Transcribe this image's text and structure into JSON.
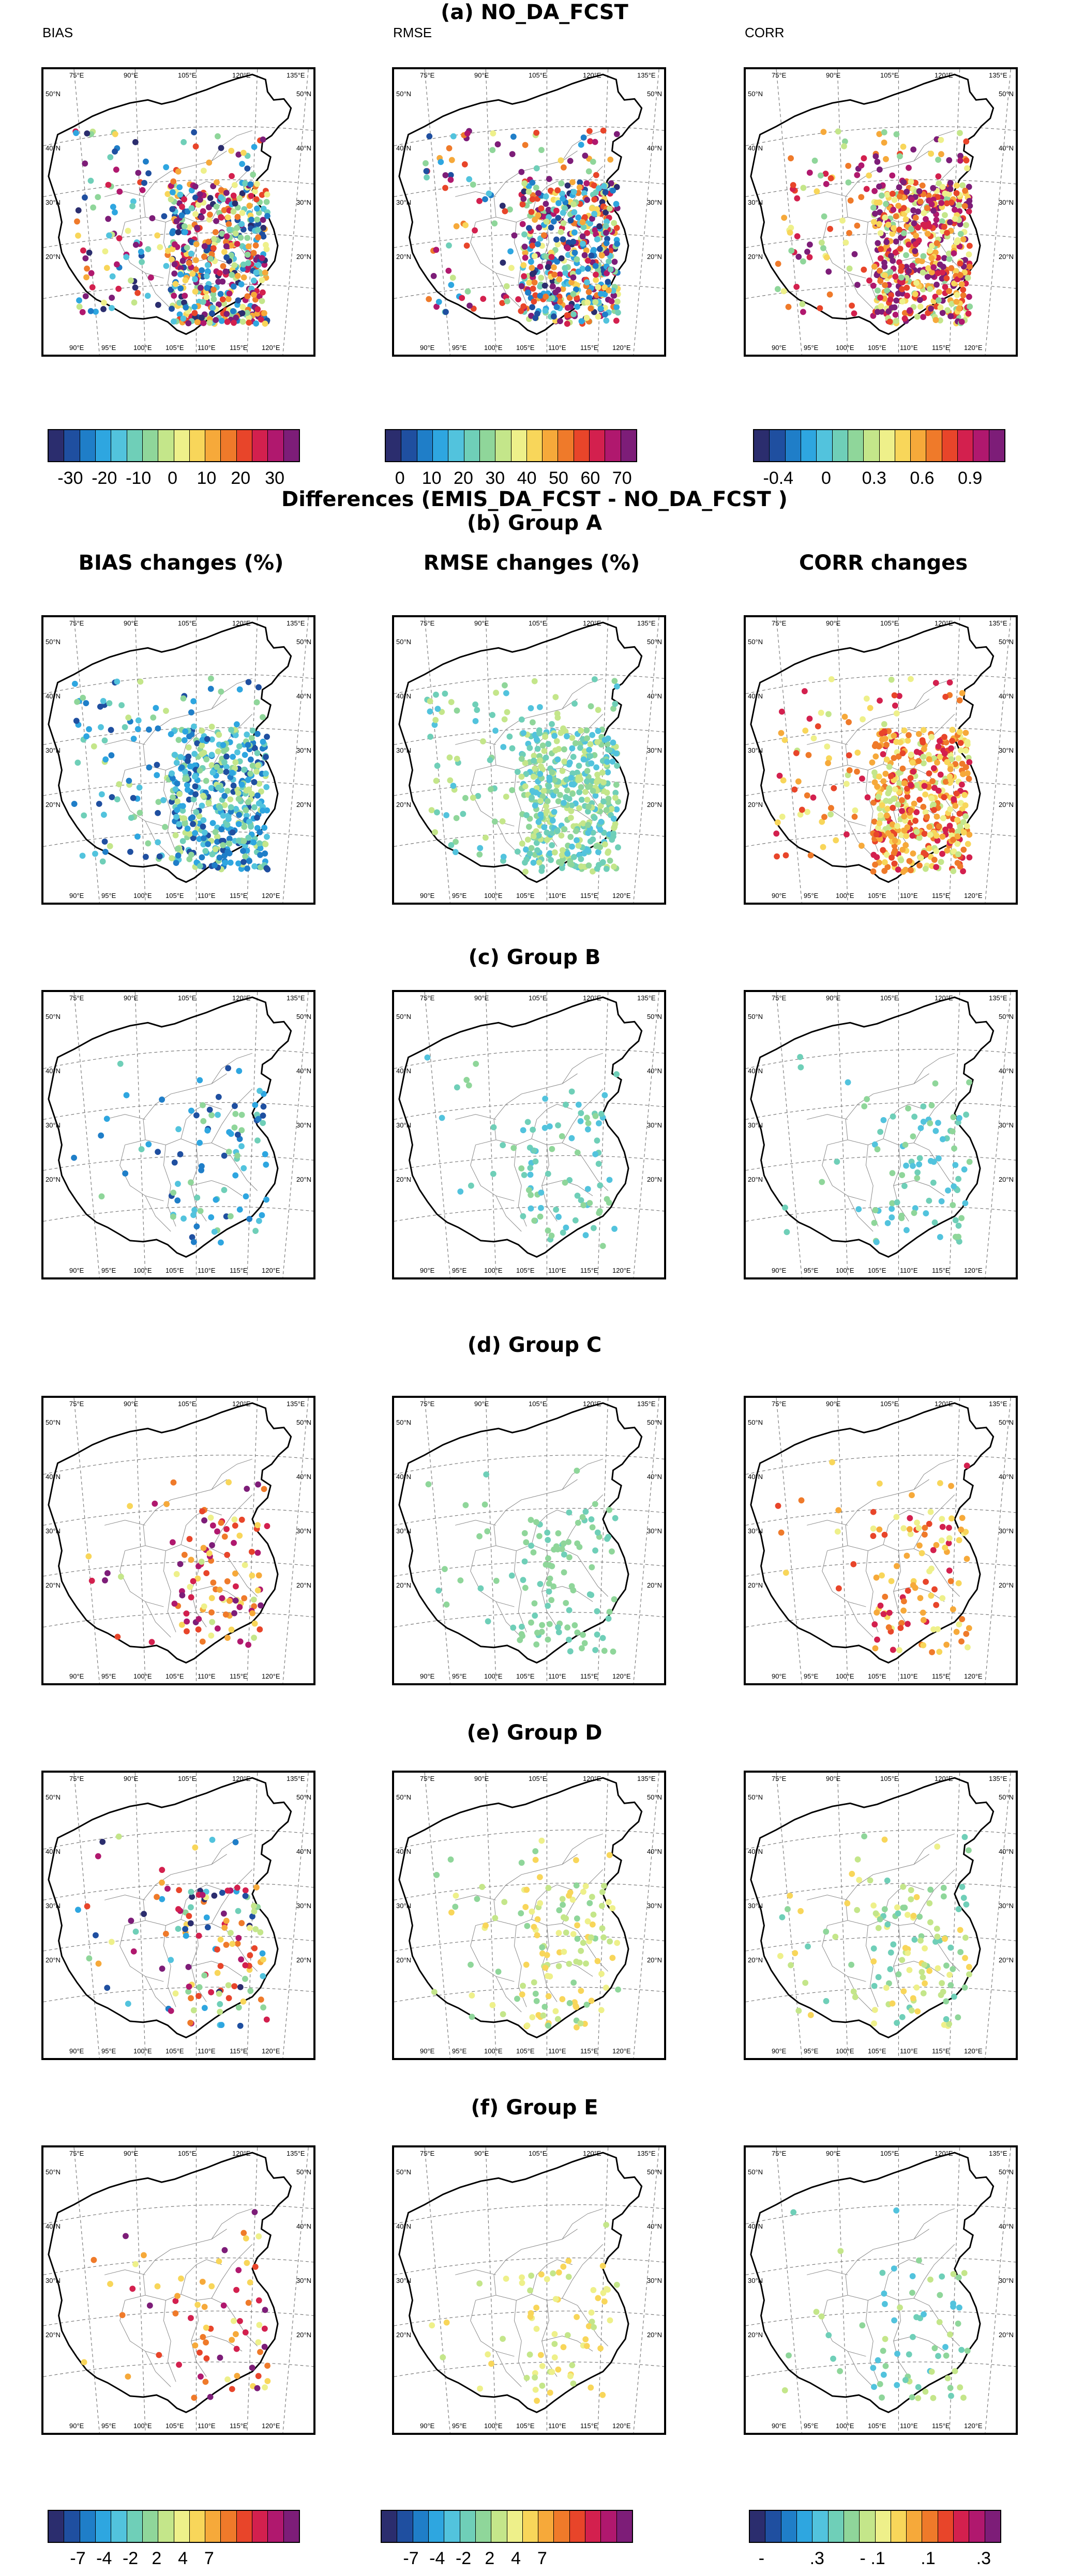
{
  "titles": {
    "section_a": "(a) NO_DA_FCST",
    "differences": "Differences (EMIS_DA_FCST - NO_DA_FCST )",
    "section_b": "(b)  Group A",
    "section_c": "(c) Group B",
    "section_d": "(d) Group C",
    "section_e": "(e) Group D",
    "section_f": "(f) Group E"
  },
  "panel_labels": {
    "bias": "BIAS",
    "rmse": "RMSE",
    "corr": "CORR"
  },
  "column_titles": {
    "bias": "BIAS changes (%)",
    "rmse": "RMSE changes (%)",
    "corr": "CORR changes"
  },
  "map_labels": {
    "lat": [
      "50°N",
      "40°N",
      "30°N",
      "20°N"
    ],
    "lon_top": [
      "75°E",
      "90°E",
      "105°E",
      "120°E",
      "135°E"
    ],
    "lon_bottom": [
      "90°E",
      "95°E",
      "100°E",
      "105°E",
      "110°E",
      "115°E",
      "120°E"
    ]
  },
  "colorbars": {
    "top_bias_ticks": [
      "-30",
      "-20",
      "-10",
      "0",
      "10",
      "20",
      "30"
    ],
    "top_rmse_ticks": [
      "0",
      "10",
      "20",
      "30",
      "40",
      "50",
      "60",
      "70"
    ],
    "top_corr_ticks": [
      "-0.4",
      "0",
      "0.3",
      "0.6",
      "0.9"
    ],
    "bottom_bias_ticks": [
      "-7",
      "-4",
      "-2",
      "2",
      "4",
      "7"
    ],
    "bottom_rmse_ticks": [
      "-7",
      "-4",
      "-2",
      "2",
      "4",
      "7"
    ],
    "bottom_corr_ticks": [
      "-",
      ".3",
      "- .1",
      ".1",
      ".3"
    ]
  },
  "palette": [
    "#2b2d6e",
    "#1f4fa0",
    "#1f7ec8",
    "#2ea6e0",
    "#52c3dd",
    "#6fcfb8",
    "#8fd69a",
    "#c4e68a",
    "#eef08a",
    "#f8d65a",
    "#f6a93a",
    "#ef7a2a",
    "#e8452a",
    "#d3204e",
    "#b0186e",
    "#7d1d78"
  ],
  "colors": {
    "coast": "#000000",
    "province": "#888888",
    "grid": "#777777"
  }
}
